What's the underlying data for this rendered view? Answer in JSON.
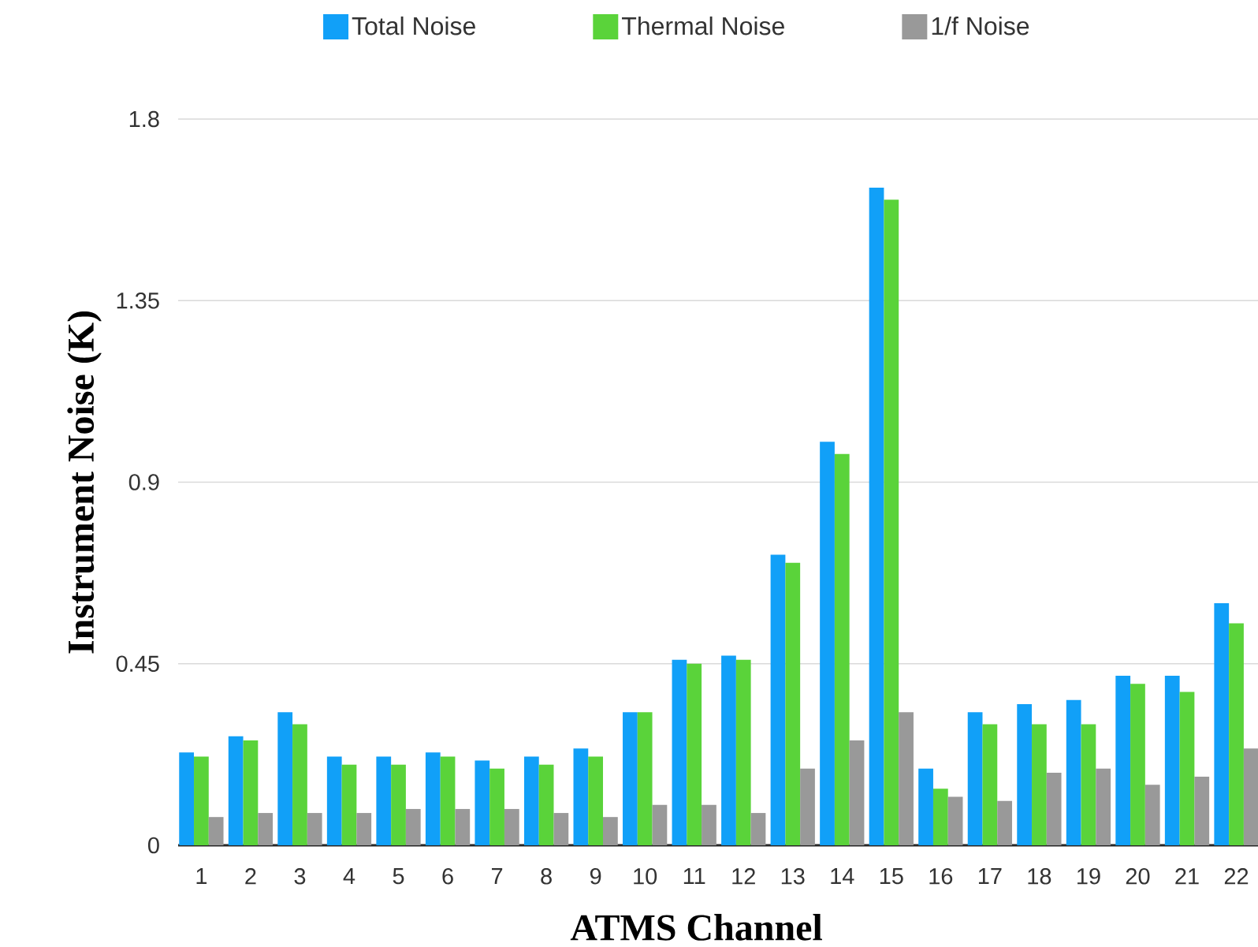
{
  "chart_data": {
    "type": "bar",
    "xlabel": "ATMS Channel",
    "ylabel": "Instrument Noise (K)",
    "categories": [
      "1",
      "2",
      "3",
      "4",
      "5",
      "6",
      "7",
      "8",
      "9",
      "10",
      "11",
      "12",
      "13",
      "14",
      "15",
      "16",
      "17",
      "18",
      "19",
      "20",
      "21",
      "22"
    ],
    "series": [
      {
        "name": "Total Noise",
        "color": "#11a0f8",
        "values": [
          0.23,
          0.27,
          0.33,
          0.22,
          0.22,
          0.23,
          0.21,
          0.22,
          0.24,
          0.33,
          0.46,
          0.47,
          0.72,
          1.0,
          1.63,
          0.19,
          0.33,
          0.35,
          0.36,
          0.42,
          0.42,
          0.6
        ]
      },
      {
        "name": "Thermal Noise",
        "color": "#5ad33a",
        "values": [
          0.22,
          0.26,
          0.3,
          0.2,
          0.2,
          0.22,
          0.19,
          0.2,
          0.22,
          0.33,
          0.45,
          0.46,
          0.7,
          0.97,
          1.6,
          0.14,
          0.3,
          0.3,
          0.3,
          0.4,
          0.38,
          0.55
        ]
      },
      {
        "name": "1/f Noise",
        "color": "#999999",
        "values": [
          0.07,
          0.08,
          0.08,
          0.08,
          0.09,
          0.09,
          0.09,
          0.08,
          0.07,
          0.1,
          0.1,
          0.08,
          0.19,
          0.26,
          0.33,
          0.12,
          0.11,
          0.18,
          0.19,
          0.15,
          0.17,
          0.24
        ]
      }
    ],
    "ylim": [
      0,
      1.8
    ],
    "yticks": [
      0,
      0.45,
      0.9,
      1.35,
      1.8
    ],
    "grid": "y",
    "legend": "top"
  }
}
